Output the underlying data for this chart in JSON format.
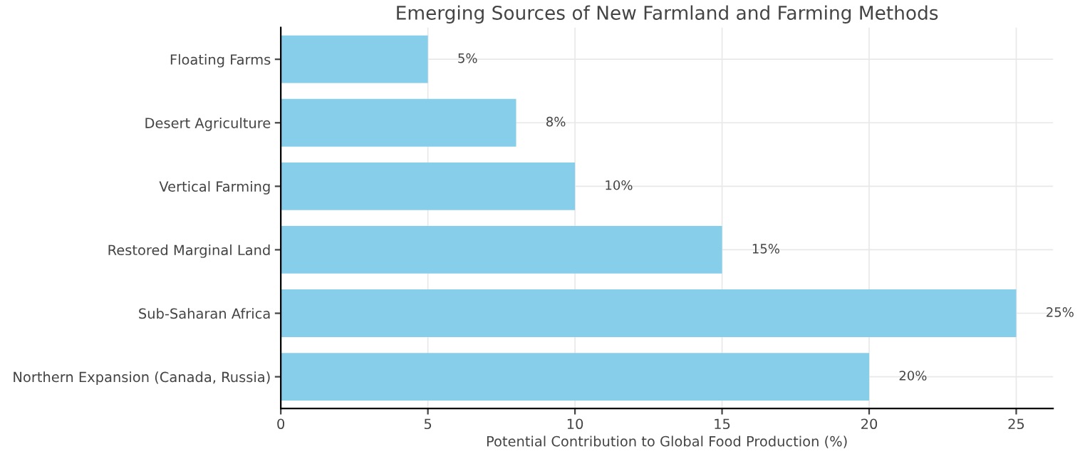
{
  "chart_data": {
    "type": "bar",
    "orientation": "horizontal",
    "title": "Emerging Sources of New Farmland and Farming Methods",
    "xlabel": "Potential Contribution to Global Food Production (%)",
    "categories": [
      "Floating Farms",
      "Desert Agriculture",
      "Vertical Farming",
      "Restored Marginal Land",
      "Sub-Saharan Africa",
      "Northern Expansion (Canada, Russia)"
    ],
    "values": [
      5,
      8,
      10,
      15,
      25,
      20
    ],
    "value_labels": [
      "5%",
      "8%",
      "10%",
      "15%",
      "25%",
      "20%"
    ],
    "color": "#87ceeb",
    "xlim": [
      0,
      26.25
    ],
    "xticks": [
      0,
      5,
      10,
      15,
      20,
      25
    ],
    "grid": true
  }
}
